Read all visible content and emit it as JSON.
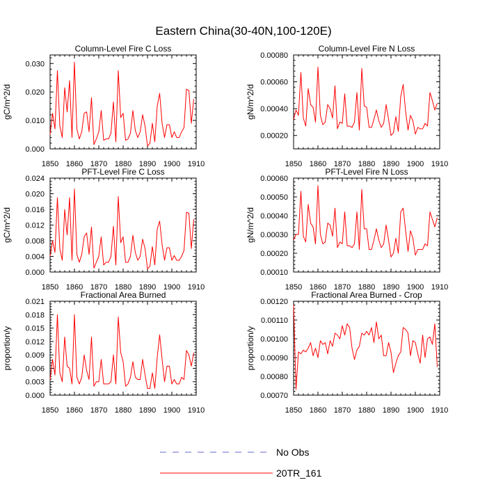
{
  "figure": {
    "title": "Eastern China(30-40N,100-120E)"
  },
  "colors": {
    "series_20TR": "#ff0000",
    "no_obs": "#6666cc",
    "axis": "#000000"
  },
  "legend": {
    "position": "bottom-center",
    "entries": [
      {
        "label": "No Obs",
        "style": "dashed",
        "color": "#6666cc"
      },
      {
        "label": "20TR_161",
        "style": "solid",
        "color": "#ff0000"
      }
    ]
  },
  "chart_data": [
    {
      "type": "line",
      "title": "Column-Level Fire C Loss",
      "ylabel": "gC/m^2/d",
      "xlabel": "",
      "xlim": [
        1850,
        1910
      ],
      "ylim": [
        0.0,
        0.033
      ],
      "xticks": [
        1850,
        1860,
        1870,
        1880,
        1890,
        1900,
        1910
      ],
      "xtick_labels": [
        "1850",
        "1860",
        "1870",
        "1880",
        "1890",
        "1900",
        "1910"
      ],
      "yticks": [
        0.0,
        0.01,
        0.02,
        0.03
      ],
      "ytick_labels": [
        "0.000",
        "0.010",
        "0.020",
        "0.030"
      ],
      "x_start": 1850,
      "x_step": 1,
      "series": [
        {
          "name": "20TR_161",
          "values": [
            0.005,
            0.0125,
            0.007,
            0.0275,
            0.008,
            0.004,
            0.0215,
            0.013,
            0.024,
            0.004,
            0.0305,
            0.007,
            0.0035,
            0.006,
            0.0125,
            0.013,
            0.006,
            0.018,
            0.0015,
            0.0035,
            0.006,
            0.0135,
            0.003,
            0.0035,
            0.0035,
            0.0055,
            0.0165,
            0.0025,
            0.0275,
            0.011,
            0.0125,
            0.003,
            0.0035,
            0.0055,
            0.0135,
            0.0065,
            0.004,
            0.006,
            0.012,
            0.008,
            0.001,
            0.002,
            0.009,
            0.0025,
            0.015,
            0.0195,
            0.009,
            0.004,
            0.0085,
            0.0085,
            0.004,
            0.006,
            0.004,
            0.004,
            0.006,
            0.0075,
            0.021,
            0.0205,
            0.009,
            0.0175
          ]
        }
      ]
    },
    {
      "type": "line",
      "title": "Column-Level Fire N Loss",
      "ylabel": "gN/m^2/d",
      "xlabel": "",
      "xlim": [
        1850,
        1910
      ],
      "ylim": [
        0.0001,
        0.0008
      ],
      "xticks": [
        1850,
        1860,
        1870,
        1880,
        1890,
        1900,
        1910
      ],
      "xtick_labels": [
        "1850",
        "1860",
        "1870",
        "1880",
        "1890",
        "1900",
        "1910"
      ],
      "yticks": [
        0.0002,
        0.0004,
        0.0006,
        0.0008
      ],
      "ytick_labels": [
        "0.00020",
        "0.00040",
        "0.00060",
        "0.00080"
      ],
      "x_start": 1850,
      "x_step": 1,
      "series": [
        {
          "name": "20TR_161",
          "values": [
            0.00032,
            0.00039,
            0.00035,
            0.00067,
            0.00033,
            0.00027,
            0.00055,
            0.00043,
            0.00041,
            0.0003,
            0.00071,
            0.00035,
            0.00028,
            0.0003,
            0.00043,
            0.0004,
            0.00033,
            0.00057,
            0.00025,
            0.0003,
            0.00029,
            0.00051,
            0.00027,
            0.00027,
            0.00026,
            0.0003,
            0.00052,
            0.00024,
            0.0007,
            0.00042,
            0.00041,
            0.00026,
            0.00026,
            0.00032,
            0.00039,
            0.00031,
            0.00026,
            0.00029,
            0.00043,
            0.00032,
            0.0002,
            0.00022,
            0.00034,
            0.00023,
            0.00049,
            0.00058,
            0.00038,
            0.00024,
            0.00035,
            0.00031,
            0.00021,
            0.00026,
            0.00025,
            0.00025,
            0.00029,
            0.00027,
            0.00052,
            0.00046,
            0.00039,
            0.00044
          ]
        }
      ]
    },
    {
      "type": "line",
      "title": "PFT-Level Fire C Loss",
      "ylabel": "gC/m^2/d",
      "xlabel": "",
      "xlim": [
        1850,
        1910
      ],
      "ylim": [
        0.0,
        0.024
      ],
      "xticks": [
        1850,
        1860,
        1870,
        1880,
        1890,
        1900,
        1910
      ],
      "xtick_labels": [
        "1850",
        "1860",
        "1870",
        "1880",
        "1890",
        "1900",
        "1910"
      ],
      "yticks": [
        0.0,
        0.004,
        0.008,
        0.012,
        0.016,
        0.02,
        0.024
      ],
      "ytick_labels": [
        "0.000",
        "0.004",
        "0.008",
        "0.012",
        "0.016",
        "0.020",
        "0.024"
      ],
      "x_start": 1850,
      "x_step": 1,
      "series": [
        {
          "name": "20TR_161",
          "values": [
            0.004,
            0.008,
            0.005,
            0.019,
            0.006,
            0.003,
            0.016,
            0.0095,
            0.019,
            0.003,
            0.0212,
            0.0045,
            0.0025,
            0.0045,
            0.009,
            0.01,
            0.0045,
            0.0115,
            0.001,
            0.0025,
            0.004,
            0.009,
            0.0018,
            0.0025,
            0.0025,
            0.004,
            0.0117,
            0.0018,
            0.0193,
            0.0075,
            0.009,
            0.0025,
            0.0025,
            0.004,
            0.0094,
            0.005,
            0.003,
            0.004,
            0.0084,
            0.006,
            0.0008,
            0.0015,
            0.0065,
            0.0018,
            0.011,
            0.013,
            0.007,
            0.003,
            0.0062,
            0.0062,
            0.003,
            0.0042,
            0.003,
            0.003,
            0.004,
            0.0055,
            0.0153,
            0.015,
            0.006,
            0.0135
          ]
        }
      ]
    },
    {
      "type": "line",
      "title": "PFT-Level Fire N Loss",
      "ylabel": "gN/m^2/d",
      "xlabel": "",
      "xlim": [
        1850,
        1910
      ],
      "ylim": [
        0.0001,
        0.0006
      ],
      "xticks": [
        1850,
        1860,
        1870,
        1880,
        1890,
        1900,
        1910
      ],
      "xtick_labels": [
        "1850",
        "1860",
        "1870",
        "1880",
        "1890",
        "1900",
        "1910"
      ],
      "yticks": [
        0.0001,
        0.0002,
        0.0003,
        0.0004,
        0.0005,
        0.0006
      ],
      "ytick_labels": [
        "0.00010",
        "0.00020",
        "0.00030",
        "0.00040",
        "0.00050",
        "0.00060"
      ],
      "x_start": 1850,
      "x_step": 1,
      "series": [
        {
          "name": "20TR_161",
          "values": [
            0.00027,
            0.0003,
            0.0003,
            0.00053,
            0.00029,
            0.00026,
            0.00046,
            0.00036,
            0.00034,
            0.00025,
            0.00056,
            0.0003,
            0.00025,
            0.00026,
            0.00036,
            0.00035,
            0.00029,
            0.00044,
            0.00023,
            0.00026,
            0.00025,
            0.00042,
            0.00024,
            0.00024,
            0.00023,
            0.00025,
            0.00042,
            0.00022,
            0.00054,
            0.00033,
            0.00033,
            0.00022,
            0.00022,
            0.00027,
            0.00033,
            0.00027,
            0.00023,
            0.00025,
            0.00035,
            0.00027,
            0.00018,
            0.0002,
            0.00028,
            0.0002,
            0.00042,
            0.00044,
            0.00032,
            0.00021,
            0.00032,
            0.00028,
            0.00019,
            0.00022,
            0.00022,
            0.00022,
            0.00025,
            0.00024,
            0.00042,
            0.00038,
            0.00034,
            0.00039
          ]
        }
      ]
    },
    {
      "type": "line",
      "title": "Fractional Area Burned",
      "ylabel": "proportion/y",
      "xlabel": "",
      "xlim": [
        1850,
        1910
      ],
      "ylim": [
        0.0,
        0.021
      ],
      "xticks": [
        1850,
        1860,
        1870,
        1880,
        1890,
        1900,
        1910
      ],
      "xtick_labels": [
        "1850",
        "1860",
        "1870",
        "1880",
        "1890",
        "1900",
        "1910"
      ],
      "yticks": [
        0.0,
        0.003,
        0.006,
        0.009,
        0.012,
        0.015,
        0.018,
        0.021
      ],
      "ytick_labels": [
        "0.000",
        "0.003",
        "0.006",
        "0.009",
        "0.012",
        "0.015",
        "0.018",
        "0.021"
      ],
      "x_start": 1850,
      "x_step": 1,
      "series": [
        {
          "name": "20TR_161",
          "values": [
            0.0035,
            0.008,
            0.0045,
            0.018,
            0.005,
            0.003,
            0.013,
            0.0065,
            0.006,
            0.0025,
            0.018,
            0.004,
            0.0025,
            0.004,
            0.009,
            0.0055,
            0.0035,
            0.013,
            0.002,
            0.003,
            0.003,
            0.008,
            0.0025,
            0.0025,
            0.0025,
            0.003,
            0.009,
            0.0025,
            0.0175,
            0.0095,
            0.0075,
            0.002,
            0.0025,
            0.004,
            0.0075,
            0.004,
            0.0035,
            0.0035,
            0.008,
            0.0045,
            0.0015,
            0.0015,
            0.005,
            0.0015,
            0.0085,
            0.0135,
            0.008,
            0.003,
            0.0065,
            0.0065,
            0.0025,
            0.0035,
            0.0025,
            0.0025,
            0.004,
            0.0035,
            0.01,
            0.009,
            0.0065,
            0.0095
          ]
        }
      ]
    },
    {
      "type": "line",
      "title": "Fractional Area Burned - Crop",
      "ylabel": "proportion/y",
      "xlabel": "",
      "xlim": [
        1850,
        1910
      ],
      "ylim": [
        0.0007,
        0.0012
      ],
      "xticks": [
        1850,
        1860,
        1870,
        1880,
        1890,
        1900,
        1910
      ],
      "xtick_labels": [
        "1850",
        "1860",
        "1870",
        "1880",
        "1890",
        "1900",
        "1910"
      ],
      "yticks": [
        0.0007,
        0.0008,
        0.0009,
        0.001,
        0.0011,
        0.0012
      ],
      "ytick_labels": [
        "0.00070",
        "0.00080",
        "0.00090",
        "0.00100",
        "0.00110",
        "0.00120"
      ],
      "x_start": 1850,
      "x_step": 1,
      "series": [
        {
          "name": "20TR_161",
          "values": [
            0.00118,
            0.00073,
            0.00093,
            0.00092,
            0.00094,
            0.00093,
            0.00095,
            0.00098,
            0.00091,
            0.00095,
            0.0009,
            0.00099,
            0.00097,
            0.00098,
            0.00092,
            0.00099,
            0.00096,
            0.00103,
            0.00102,
            0.001,
            0.00107,
            0.00102,
            0.00108,
            0.00106,
            0.00095,
            0.00089,
            0.00094,
            0.00096,
            0.00103,
            0.00102,
            0.00104,
            0.00102,
            0.00106,
            0.00098,
            0.00109,
            0.001,
            0.00102,
            0.00091,
            0.00091,
            0.00098,
            0.00093,
            0.00082,
            0.00087,
            0.00091,
            0.00093,
            0.00106,
            0.00105,
            0.00103,
            0.00091,
            0.00099,
            0.00098,
            0.00092,
            0.00087,
            0.00102,
            0.0009,
            0.001,
            0.00101,
            0.00097,
            0.00108,
            0.00085
          ]
        }
      ]
    }
  ]
}
